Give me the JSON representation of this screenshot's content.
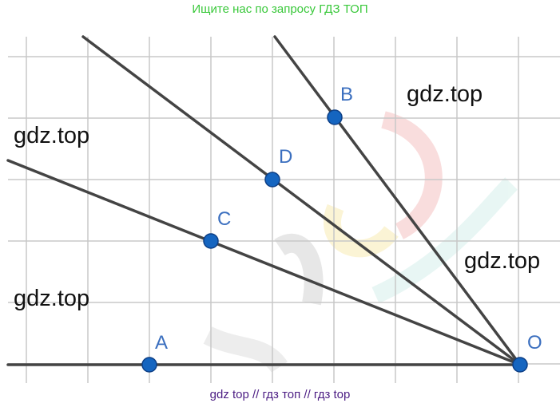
{
  "banners": {
    "top": "Ищите нас по запросу ГДЗ ТОП",
    "bottom": "gdz top  //  гдз топ  //  гдз top"
  },
  "watermarks": [
    "gdz.top",
    "gdz.top",
    "gdz.top",
    "gdz.top"
  ],
  "points": {
    "A": "A",
    "B": "B",
    "C": "C",
    "D": "D",
    "O": "O"
  },
  "colors": {
    "grid": "#c8c8c8",
    "line": "#444444",
    "point_fill": "#1565c0",
    "point_label": "#3b6fbf"
  }
}
